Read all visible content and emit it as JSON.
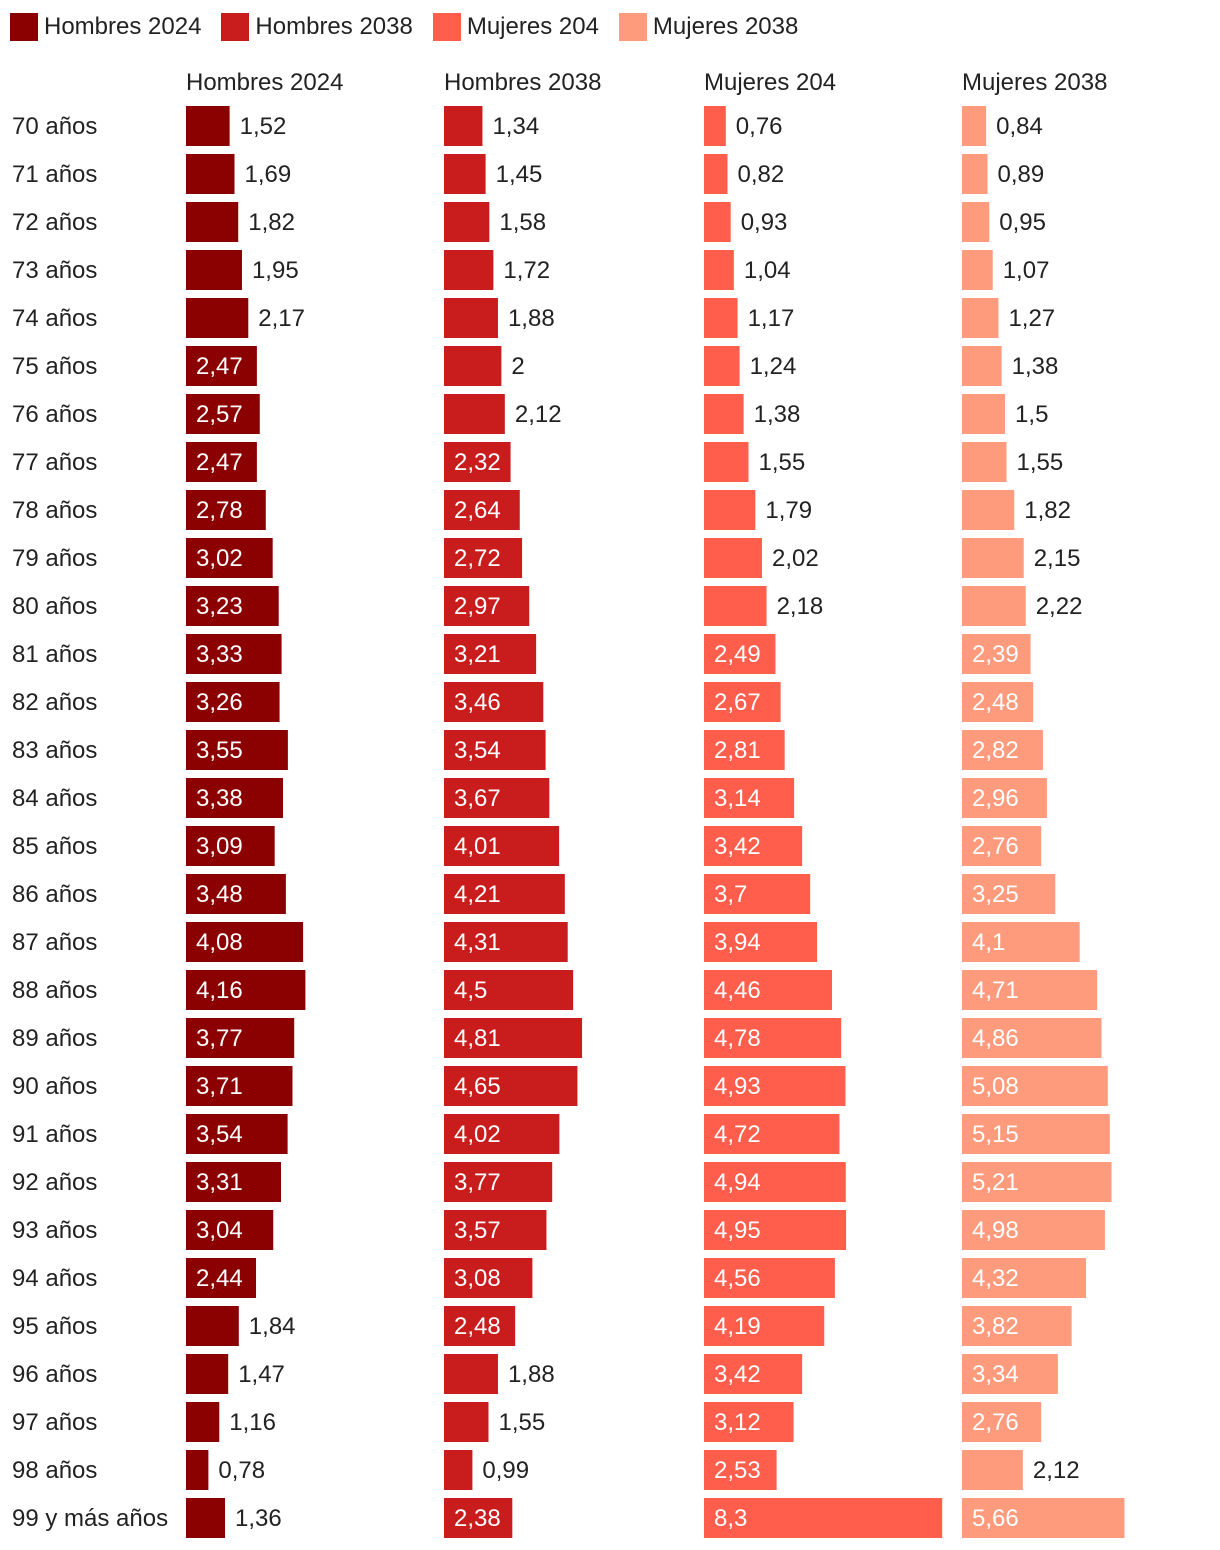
{
  "chart_data": {
    "type": "bar",
    "orientation": "horizontal",
    "layout": "small-multiples",
    "legend_position": "top-left",
    "categories": [
      "70 años",
      "71 años",
      "72 años",
      "73 años",
      "74 años",
      "75 años",
      "76 años",
      "77 años",
      "78 años",
      "79 años",
      "80 años",
      "81 años",
      "82 años",
      "83 años",
      "84 años",
      "85 años",
      "86 años",
      "87 años",
      "88 años",
      "89 años",
      "90 años",
      "91 años",
      "92 años",
      "93 años",
      "94 años",
      "95 años",
      "96 años",
      "97 años",
      "98 años",
      "99 y más años"
    ],
    "series": [
      {
        "name": "Hombres 2024",
        "color": "#8b0000",
        "values": [
          1.52,
          1.69,
          1.82,
          1.95,
          2.17,
          2.47,
          2.57,
          2.47,
          2.78,
          3.02,
          3.23,
          3.33,
          3.26,
          3.55,
          3.38,
          3.09,
          3.48,
          4.08,
          4.16,
          3.77,
          3.71,
          3.54,
          3.31,
          3.04,
          2.44,
          1.84,
          1.47,
          1.16,
          0.78,
          1.36
        ],
        "labels": [
          "1,52",
          "1,69",
          "1,82",
          "1,95",
          "2,17",
          "2,47",
          "2,57",
          "2,47",
          "2,78",
          "3,02",
          "3,23",
          "3,33",
          "3,26",
          "3,55",
          "3,38",
          "3,09",
          "3,48",
          "4,08",
          "4,16",
          "3,77",
          "3,71",
          "3,54",
          "3,31",
          "3,04",
          "2,44",
          "1,84",
          "1,47",
          "1,16",
          "0,78",
          "1,36"
        ]
      },
      {
        "name": "Hombres 2038",
        "color": "#c91d1d",
        "values": [
          1.34,
          1.45,
          1.58,
          1.72,
          1.88,
          2,
          2.12,
          2.32,
          2.64,
          2.72,
          2.97,
          3.21,
          3.46,
          3.54,
          3.67,
          4.01,
          4.21,
          4.31,
          4.5,
          4.81,
          4.65,
          4.02,
          3.77,
          3.57,
          3.08,
          2.48,
          1.88,
          1.55,
          0.99,
          2.38
        ],
        "labels": [
          "1,34",
          "1,45",
          "1,58",
          "1,72",
          "1,88",
          "2",
          "2,12",
          "2,32",
          "2,64",
          "2,72",
          "2,97",
          "3,21",
          "3,46",
          "3,54",
          "3,67",
          "4,01",
          "4,21",
          "4,31",
          "4,5",
          "4,81",
          "4,65",
          "4,02",
          "3,77",
          "3,57",
          "3,08",
          "2,48",
          "1,88",
          "1,55",
          "0,99",
          "2,38"
        ]
      },
      {
        "name": "Mujeres 204",
        "color": "#ff5e4d",
        "values": [
          0.76,
          0.82,
          0.93,
          1.04,
          1.17,
          1.24,
          1.38,
          1.55,
          1.79,
          2.02,
          2.18,
          2.49,
          2.67,
          2.81,
          3.14,
          3.42,
          3.7,
          3.94,
          4.46,
          4.78,
          4.93,
          4.72,
          4.94,
          4.95,
          4.56,
          4.19,
          3.42,
          3.12,
          2.53,
          8.3
        ],
        "labels": [
          "0,76",
          "0,82",
          "0,93",
          "1,04",
          "1,17",
          "1,24",
          "1,38",
          "1,55",
          "1,79",
          "2,02",
          "2,18",
          "2,49",
          "2,67",
          "2,81",
          "3,14",
          "3,42",
          "3,7",
          "3,94",
          "4,46",
          "4,78",
          "4,93",
          "4,72",
          "4,94",
          "4,95",
          "4,56",
          "4,19",
          "3,42",
          "3,12",
          "2,53",
          "8,3"
        ]
      },
      {
        "name": "Mujeres 2038",
        "color": "#ff9b7d",
        "values": [
          0.84,
          0.89,
          0.95,
          1.07,
          1.27,
          1.38,
          1.5,
          1.55,
          1.82,
          2.15,
          2.22,
          2.39,
          2.48,
          2.82,
          2.96,
          2.76,
          3.25,
          4.1,
          4.71,
          4.86,
          5.08,
          5.15,
          5.21,
          4.98,
          4.32,
          3.82,
          3.34,
          2.76,
          2.12,
          5.66
        ],
        "labels": [
          "0,84",
          "0,89",
          "0,95",
          "1,07",
          "1,27",
          "1,38",
          "1,5",
          "1,55",
          "1,82",
          "2,15",
          "2,22",
          "2,39",
          "2,48",
          "2,82",
          "2,96",
          "2,76",
          "3,25",
          "4,1",
          "4,71",
          "4,86",
          "5,08",
          "5,15",
          "5,21",
          "4,98",
          "4,32",
          "3,82",
          "3,34",
          "2,76",
          "2,12",
          "5,66"
        ]
      }
    ]
  }
}
